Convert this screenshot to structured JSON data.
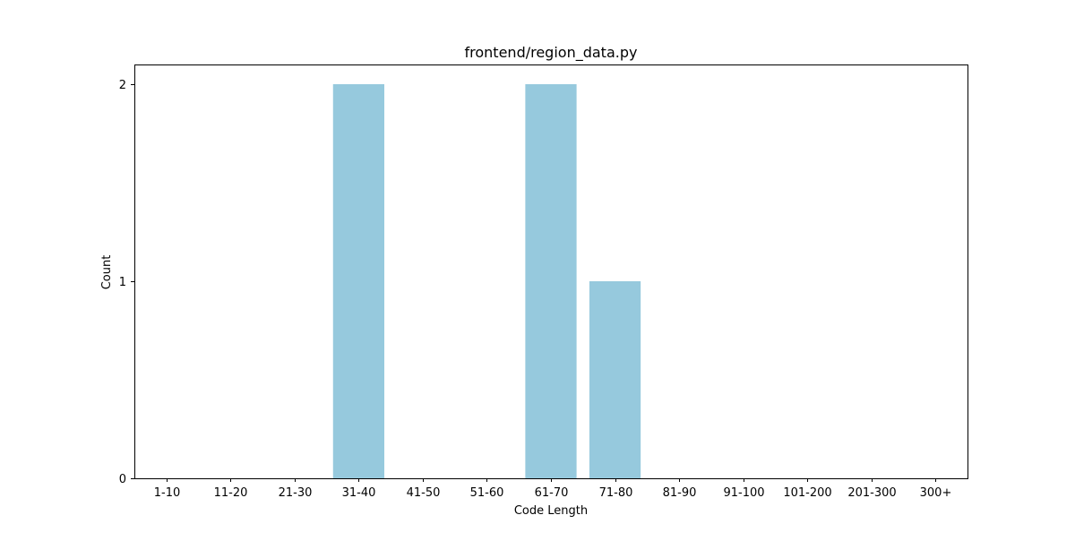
{
  "chart_data": {
    "type": "bar",
    "title": "frontend/region_data.py",
    "xlabel": "Code Length",
    "ylabel": "Count",
    "categories": [
      "1-10",
      "11-20",
      "21-30",
      "31-40",
      "41-50",
      "51-60",
      "61-70",
      "71-80",
      "81-90",
      "91-100",
      "101-200",
      "201-300",
      "300+"
    ],
    "values": [
      0,
      0,
      0,
      2,
      0,
      0,
      2,
      1,
      0,
      0,
      0,
      0,
      0
    ],
    "yticks": [
      0,
      1,
      2
    ],
    "ylim": [
      0,
      2.1
    ],
    "bar_color": "#96c9dd",
    "grid": false,
    "legend": "none"
  }
}
